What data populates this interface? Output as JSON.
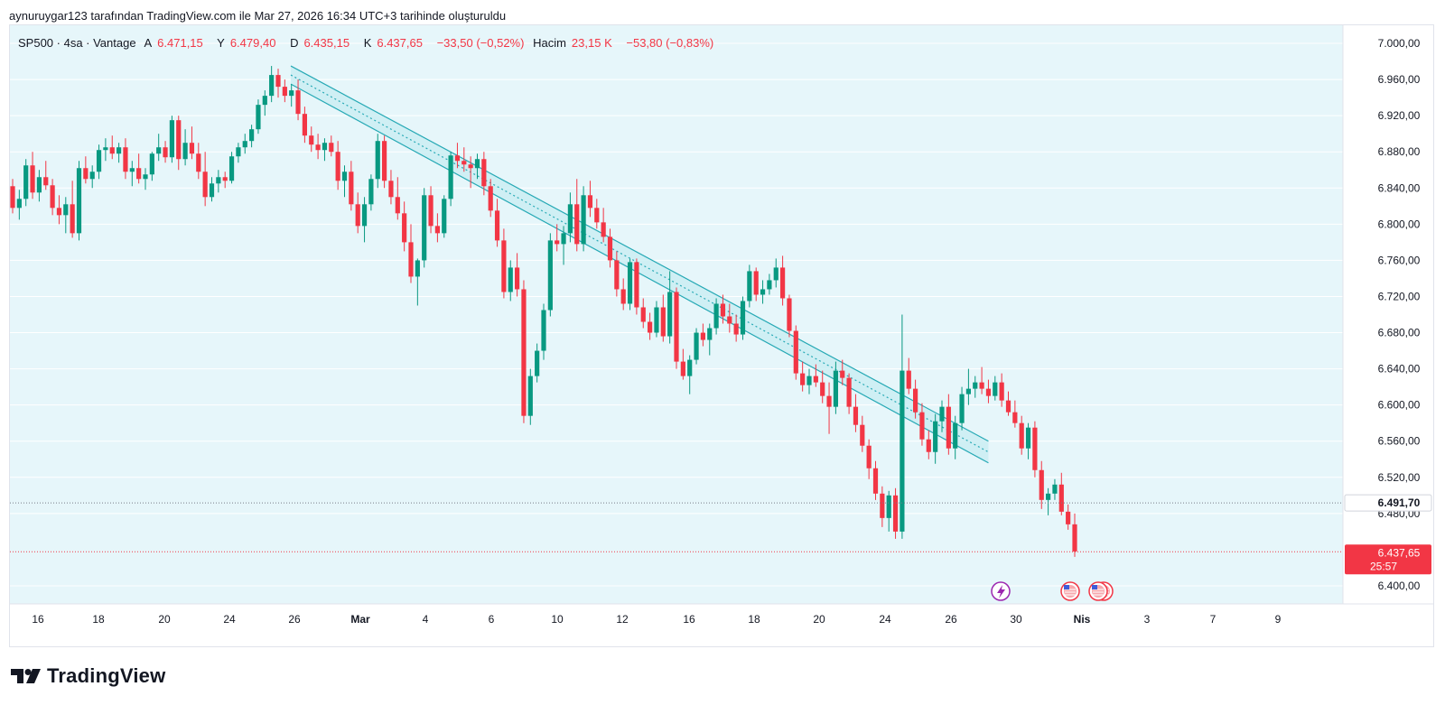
{
  "caption": "aynuruygar123 tarafından TradingView.com ile Mar 27, 2026 16:34 UTC+3 tarihinde oluşturuldu",
  "legend": {
    "symbol": "SP500 · 4sa · Vantage",
    "open_label": "A",
    "open_value": "6.471,15",
    "high_label": "Y",
    "high_value": "6.479,40",
    "low_label": "D",
    "low_value": "6.435,15",
    "close_label": "K",
    "close_value": "6.437,65",
    "change": "−33,50 (−0,52%)",
    "volume_label": "Hacim",
    "volume_value": "23,15 K",
    "volume_change": "−53,80 (−0,83%)"
  },
  "brand": "TradingView",
  "colors": {
    "up": "#089981",
    "down": "#f23645",
    "channel": "#26a9b5",
    "channel_fill": "#c9eef2",
    "background": "#e6f6fa"
  },
  "chart_data": {
    "type": "candlestick",
    "symbol": "SP500",
    "interval": "4sa",
    "ylim": [
      6380,
      7020
    ],
    "y_ticks": [
      "7.000,00",
      "6.960,00",
      "6.920,00",
      "6.880,00",
      "6.840,00",
      "6.800,00",
      "6.760,00",
      "6.720,00",
      "6.680,00",
      "6.640,00",
      "6.600,00",
      "6.560,00",
      "6.520,00",
      "6.480,00",
      "6.400,00"
    ],
    "x_ticks": [
      {
        "label": "16",
        "bold": false
      },
      {
        "label": "18",
        "bold": false
      },
      {
        "label": "20",
        "bold": false
      },
      {
        "label": "24",
        "bold": false
      },
      {
        "label": "26",
        "bold": false
      },
      {
        "label": "Mar",
        "bold": true
      },
      {
        "label": "4",
        "bold": false
      },
      {
        "label": "6",
        "bold": false
      },
      {
        "label": "10",
        "bold": false
      },
      {
        "label": "12",
        "bold": false
      },
      {
        "label": "16",
        "bold": false
      },
      {
        "label": "18",
        "bold": false
      },
      {
        "label": "20",
        "bold": false
      },
      {
        "label": "24",
        "bold": false
      },
      {
        "label": "26",
        "bold": false
      },
      {
        "label": "30",
        "bold": false
      },
      {
        "label": "Nis",
        "bold": true
      },
      {
        "label": "3",
        "bold": false
      },
      {
        "label": "7",
        "bold": false
      },
      {
        "label": "9",
        "bold": false
      }
    ],
    "candles": [
      [
        6842,
        6850,
        6812,
        6818
      ],
      [
        6818,
        6838,
        6805,
        6828
      ],
      [
        6828,
        6872,
        6820,
        6865
      ],
      [
        6865,
        6880,
        6828,
        6835
      ],
      [
        6835,
        6860,
        6825,
        6852
      ],
      [
        6852,
        6870,
        6838,
        6843
      ],
      [
        6843,
        6850,
        6810,
        6818
      ],
      [
        6818,
        6832,
        6800,
        6810
      ],
      [
        6810,
        6830,
        6790,
        6822
      ],
      [
        6822,
        6848,
        6785,
        6790
      ],
      [
        6790,
        6870,
        6782,
        6862
      ],
      [
        6862,
        6875,
        6845,
        6850
      ],
      [
        6850,
        6865,
        6840,
        6858
      ],
      [
        6858,
        6888,
        6850,
        6882
      ],
      [
        6882,
        6895,
        6870,
        6885
      ],
      [
        6885,
        6898,
        6872,
        6878
      ],
      [
        6878,
        6890,
        6868,
        6885
      ],
      [
        6885,
        6895,
        6850,
        6858
      ],
      [
        6858,
        6870,
        6842,
        6862
      ],
      [
        6862,
        6878,
        6845,
        6850
      ],
      [
        6850,
        6862,
        6838,
        6855
      ],
      [
        6855,
        6880,
        6848,
        6878
      ],
      [
        6878,
        6900,
        6870,
        6885
      ],
      [
        6885,
        6892,
        6868,
        6874
      ],
      [
        6874,
        6920,
        6868,
        6915
      ],
      [
        6915,
        6920,
        6860,
        6872
      ],
      [
        6872,
        6905,
        6865,
        6890
      ],
      [
        6890,
        6908,
        6872,
        6878
      ],
      [
        6878,
        6890,
        6850,
        6858
      ],
      [
        6858,
        6880,
        6820,
        6830
      ],
      [
        6830,
        6852,
        6825,
        6845
      ],
      [
        6845,
        6860,
        6835,
        6852
      ],
      [
        6852,
        6858,
        6840,
        6848
      ],
      [
        6848,
        6880,
        6845,
        6875
      ],
      [
        6875,
        6890,
        6868,
        6885
      ],
      [
        6885,
        6900,
        6878,
        6892
      ],
      [
        6892,
        6910,
        6885,
        6905
      ],
      [
        6905,
        6938,
        6900,
        6932
      ],
      [
        6932,
        6948,
        6920,
        6942
      ],
      [
        6942,
        6975,
        6935,
        6965
      ],
      [
        6965,
        6972,
        6940,
        6952
      ],
      [
        6952,
        6960,
        6935,
        6942
      ],
      [
        6942,
        6955,
        6930,
        6948
      ],
      [
        6948,
        6960,
        6915,
        6922
      ],
      [
        6922,
        6930,
        6890,
        6898
      ],
      [
        6898,
        6908,
        6880,
        6888
      ],
      [
        6888,
        6900,
        6872,
        6882
      ],
      [
        6882,
        6895,
        6870,
        6890
      ],
      [
        6890,
        6898,
        6875,
        6880
      ],
      [
        6880,
        6892,
        6838,
        6848
      ],
      [
        6848,
        6865,
        6830,
        6858
      ],
      [
        6858,
        6870,
        6815,
        6822
      ],
      [
        6822,
        6835,
        6790,
        6798
      ],
      [
        6798,
        6830,
        6780,
        6822
      ],
      [
        6822,
        6855,
        6815,
        6850
      ],
      [
        6850,
        6900,
        6840,
        6892
      ],
      [
        6892,
        6898,
        6840,
        6848
      ],
      [
        6848,
        6860,
        6822,
        6830
      ],
      [
        6830,
        6852,
        6805,
        6812
      ],
      [
        6812,
        6825,
        6770,
        6780
      ],
      [
        6780,
        6800,
        6735,
        6742
      ],
      [
        6742,
        6762,
        6710,
        6760
      ],
      [
        6760,
        6840,
        6752,
        6832
      ],
      [
        6832,
        6842,
        6790,
        6798
      ],
      [
        6798,
        6812,
        6780,
        6790
      ],
      [
        6790,
        6832,
        6785,
        6828
      ],
      [
        6828,
        6880,
        6820,
        6876
      ],
      [
        6876,
        6890,
        6862,
        6870
      ],
      [
        6870,
        6885,
        6858,
        6866
      ],
      [
        6866,
        6875,
        6840,
        6862
      ],
      [
        6862,
        6878,
        6850,
        6872
      ],
      [
        6872,
        6880,
        6832,
        6842
      ],
      [
        6842,
        6850,
        6808,
        6815
      ],
      [
        6815,
        6828,
        6775,
        6782
      ],
      [
        6782,
        6795,
        6718,
        6725
      ],
      [
        6725,
        6760,
        6715,
        6752
      ],
      [
        6752,
        6768,
        6720,
        6728
      ],
      [
        6728,
        6738,
        6580,
        6588
      ],
      [
        6588,
        6640,
        6578,
        6632
      ],
      [
        6632,
        6668,
        6625,
        6660
      ],
      [
        6660,
        6712,
        6650,
        6705
      ],
      [
        6705,
        6790,
        6698,
        6782
      ],
      [
        6782,
        6800,
        6770,
        6778
      ],
      [
        6778,
        6798,
        6755,
        6790
      ],
      [
        6790,
        6835,
        6780,
        6822
      ],
      [
        6822,
        6850,
        6770,
        6778
      ],
      [
        6778,
        6842,
        6770,
        6832
      ],
      [
        6832,
        6848,
        6808,
        6818
      ],
      [
        6818,
        6828,
        6795,
        6802
      ],
      [
        6802,
        6818,
        6780,
        6786
      ],
      [
        6786,
        6795,
        6752,
        6760
      ],
      [
        6760,
        6770,
        6720,
        6728
      ],
      [
        6728,
        6740,
        6705,
        6712
      ],
      [
        6712,
        6762,
        6705,
        6758
      ],
      [
        6758,
        6762,
        6700,
        6708
      ],
      [
        6708,
        6718,
        6685,
        6692
      ],
      [
        6692,
        6702,
        6672,
        6680
      ],
      [
        6680,
        6715,
        6675,
        6708
      ],
      [
        6708,
        6722,
        6670,
        6676
      ],
      [
        6676,
        6748,
        6668,
        6725
      ],
      [
        6725,
        6730,
        6640,
        6648
      ],
      [
        6648,
        6662,
        6628,
        6632
      ],
      [
        6632,
        6655,
        6612,
        6650
      ],
      [
        6650,
        6685,
        6645,
        6680
      ],
      [
        6680,
        6690,
        6665,
        6672
      ],
      [
        6672,
        6690,
        6655,
        6685
      ],
      [
        6685,
        6718,
        6678,
        6712
      ],
      [
        6712,
        6722,
        6690,
        6698
      ],
      [
        6698,
        6712,
        6680,
        6690
      ],
      [
        6690,
        6700,
        6670,
        6678
      ],
      [
        6678,
        6720,
        6672,
        6715
      ],
      [
        6715,
        6755,
        6708,
        6748
      ],
      [
        6748,
        6752,
        6715,
        6722
      ],
      [
        6722,
        6738,
        6712,
        6728
      ],
      [
        6728,
        6745,
        6722,
        6738
      ],
      [
        6738,
        6762,
        6730,
        6752
      ],
      [
        6752,
        6765,
        6710,
        6718
      ],
      [
        6718,
        6722,
        6675,
        6682
      ],
      [
        6682,
        6688,
        6628,
        6635
      ],
      [
        6635,
        6648,
        6615,
        6622
      ],
      [
        6622,
        6640,
        6612,
        6632
      ],
      [
        6632,
        6645,
        6620,
        6625
      ],
      [
        6625,
        6638,
        6602,
        6610
      ],
      [
        6610,
        6625,
        6568,
        6598
      ],
      [
        6598,
        6648,
        6590,
        6638
      ],
      [
        6638,
        6650,
        6622,
        6630
      ],
      [
        6630,
        6635,
        6590,
        6598
      ],
      [
        6598,
        6612,
        6570,
        6578
      ],
      [
        6578,
        6588,
        6548,
        6555
      ],
      [
        6555,
        6562,
        6518,
        6530
      ],
      [
        6530,
        6538,
        6495,
        6502
      ],
      [
        6502,
        6510,
        6465,
        6475
      ],
      [
        6475,
        6505,
        6460,
        6500
      ],
      [
        6500,
        6508,
        6452,
        6460
      ],
      [
        6460,
        6700,
        6452,
        6638
      ],
      [
        6638,
        6652,
        6612,
        6618
      ],
      [
        6618,
        6628,
        6585,
        6592
      ],
      [
        6592,
        6602,
        6555,
        6562
      ],
      [
        6562,
        6572,
        6540,
        6548
      ],
      [
        6548,
        6590,
        6535,
        6582
      ],
      [
        6582,
        6605,
        6570,
        6598
      ],
      [
        6598,
        6612,
        6545,
        6552
      ],
      [
        6552,
        6588,
        6540,
        6580
      ],
      [
        6580,
        6620,
        6572,
        6612
      ],
      [
        6612,
        6640,
        6600,
        6618
      ],
      [
        6618,
        6632,
        6608,
        6625
      ],
      [
        6625,
        6642,
        6612,
        6618
      ],
      [
        6618,
        6628,
        6602,
        6610
      ],
      [
        6610,
        6632,
        6605,
        6625
      ],
      [
        6625,
        6635,
        6598,
        6605
      ],
      [
        6605,
        6615,
        6588,
        6592
      ],
      [
        6592,
        6605,
        6575,
        6580
      ],
      [
        6580,
        6588,
        6545,
        6552
      ],
      [
        6552,
        6580,
        6540,
        6575
      ],
      [
        6575,
        6582,
        6520,
        6528
      ],
      [
        6528,
        6538,
        6485,
        6495
      ],
      [
        6495,
        6508,
        6478,
        6502
      ],
      [
        6502,
        6518,
        6495,
        6512
      ],
      [
        6512,
        6525,
        6478,
        6482
      ],
      [
        6482,
        6490,
        6462,
        6468
      ],
      [
        6468,
        6480,
        6432,
        6438
      ]
    ],
    "channel": {
      "upper": [
        [
          0,
          6975
        ],
        [
          147,
          6560
        ]
      ],
      "mid": [
        [
          0,
          6965
        ],
        [
          147,
          6548
        ]
      ],
      "lower": [
        [
          0,
          6955
        ],
        [
          147,
          6536
        ]
      ]
    },
    "price_lines": [
      {
        "value": 6491.7,
        "label": "6.491,70",
        "style": "dark"
      },
      {
        "value": 6437.65,
        "label": "6.437,65",
        "countdown": "25:57",
        "style": "red"
      }
    ]
  }
}
